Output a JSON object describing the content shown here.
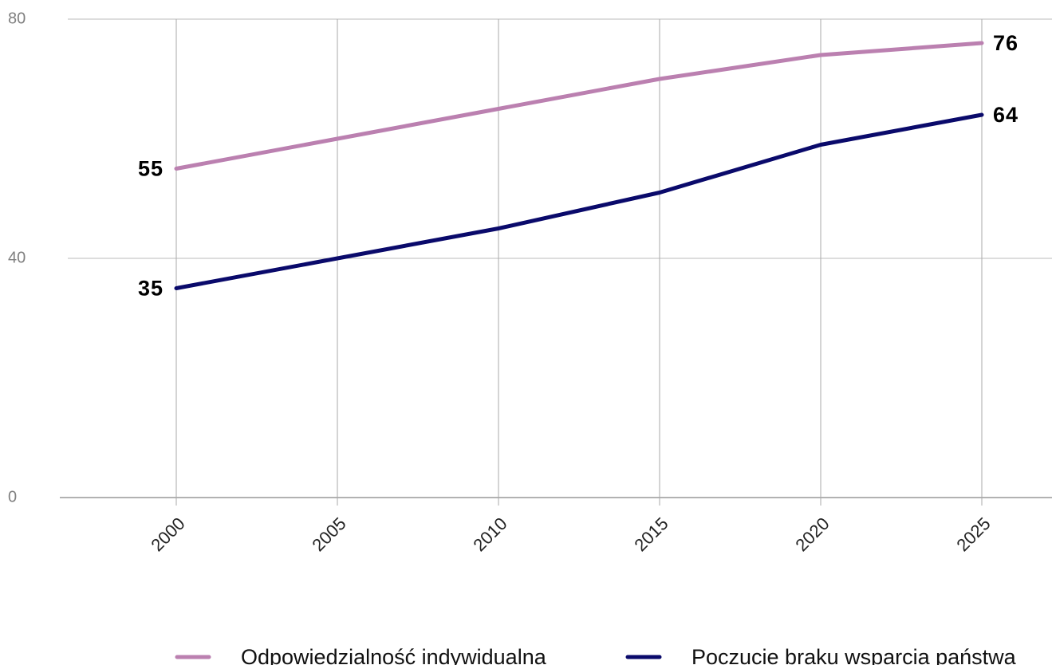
{
  "chart_data": {
    "type": "line",
    "categories": [
      "2000",
      "2005",
      "2010",
      "2015",
      "2020",
      "2025"
    ],
    "series": [
      {
        "name": "Odpowiedzialność indywidualna",
        "color": "#bb80b0",
        "values": [
          55,
          60,
          65,
          70,
          74,
          76
        ]
      },
      {
        "name": "Poczucie braku wsparcia państwa",
        "color": "#0a0a6b",
        "values": [
          35,
          40,
          45,
          51,
          59,
          64
        ]
      }
    ],
    "ylim": [
      0,
      80
    ],
    "yticks": [
      0,
      40,
      80
    ],
    "grid": true,
    "legend": "bottom"
  }
}
